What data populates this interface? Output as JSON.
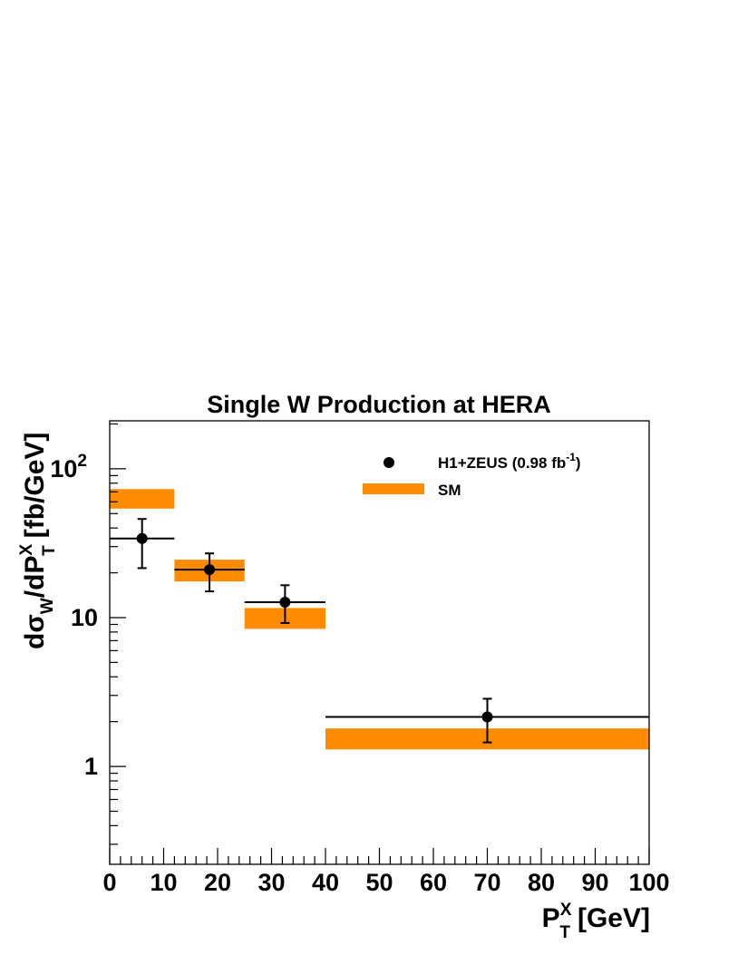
{
  "chart_data": {
    "type": "scatter",
    "title": "Single W Production at HERA",
    "xlabel": {
      "base": "P",
      "sup": "X",
      "sub": "T",
      "unit": "[GeV]"
    },
    "ylabel": {
      "prefix": "d",
      "sigma": "σ",
      "sigma_sub": "W",
      "slash": "/dP",
      "sup": "X",
      "sub": "T",
      "unit": "[fb/GeV]"
    },
    "xlim": [
      0,
      100
    ],
    "ylim": [
      0.22,
      210
    ],
    "yscale": "log",
    "grid": false,
    "legend_position": "top-right",
    "x_ticks": [
      {
        "value": 0,
        "label": "0"
      },
      {
        "value": 10,
        "label": "10"
      },
      {
        "value": 20,
        "label": "20"
      },
      {
        "value": 30,
        "label": "30"
      },
      {
        "value": 40,
        "label": "40"
      },
      {
        "value": 50,
        "label": "50"
      },
      {
        "value": 60,
        "label": "60"
      },
      {
        "value": 70,
        "label": "70"
      },
      {
        "value": 80,
        "label": "80"
      },
      {
        "value": 90,
        "label": "90"
      },
      {
        "value": 100,
        "label": "100"
      }
    ],
    "y_ticks": [
      {
        "value": 1,
        "label": "1"
      },
      {
        "value": 10,
        "label": "10"
      },
      {
        "value": 100,
        "label": "10",
        "sup": "2"
      }
    ],
    "series": [
      {
        "name": "H1+ZEUS (0.98 fb",
        "name_sup": "-1",
        "name_end": ")",
        "kind": "points",
        "color": "#000000",
        "points": [
          {
            "x": 6,
            "x_low": 0,
            "x_high": 12,
            "y": 34,
            "y_low": 21.5,
            "y_high": 46
          },
          {
            "x": 18.5,
            "x_low": 12,
            "x_high": 25,
            "y": 21,
            "y_low": 15,
            "y_high": 27
          },
          {
            "x": 32.5,
            "x_low": 25,
            "x_high": 40,
            "y": 12.7,
            "y_low": 9.2,
            "y_high": 16.5
          },
          {
            "x": 70,
            "x_low": 40,
            "x_high": 100,
            "y": 2.15,
            "y_low": 1.45,
            "y_high": 2.85
          }
        ]
      },
      {
        "name": "SM",
        "kind": "band",
        "color": "#ff8c00",
        "bins": [
          {
            "x_low": 0,
            "x_high": 12,
            "y_low": 54,
            "y_high": 73
          },
          {
            "x_low": 12,
            "x_high": 25,
            "y_low": 17.5,
            "y_high": 24.5
          },
          {
            "x_low": 25,
            "x_high": 40,
            "y_low": 8.4,
            "y_high": 11.6
          },
          {
            "x_low": 40,
            "x_high": 100,
            "y_low": 1.3,
            "y_high": 1.8
          }
        ]
      }
    ]
  }
}
